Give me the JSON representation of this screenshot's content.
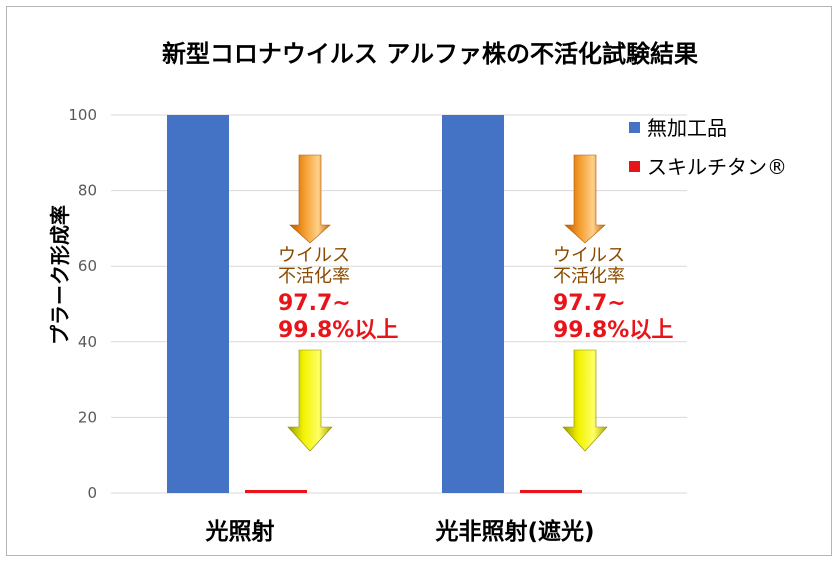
{
  "chart_data": {
    "type": "bar",
    "title": "新型コロナウイルス アルファ株の不活化試験結果",
    "xlabel": "",
    "ylabel": "プラーク形成率",
    "ylim": [
      0,
      100
    ],
    "yticks": [
      0,
      20,
      40,
      60,
      80,
      100
    ],
    "grid": true,
    "legend_position": "top-right",
    "categories": [
      "光照射",
      "光非照射(遮光)"
    ],
    "series": [
      {
        "name": "無加工品",
        "values": [
          100,
          100
        ],
        "color": "#4472c4"
      },
      {
        "name": "スキルチタン®",
        "values": [
          0.8,
          0.8
        ],
        "color": "#e8141a"
      }
    ],
    "annotations": [
      {
        "category": "光照射",
        "label_line1": "ウイルス",
        "label_line2": "不活化率",
        "value_line1": "97.7~",
        "value_line2": "99.8%以上"
      },
      {
        "category": "光非照射(遮光)",
        "label_line1": "ウイルス",
        "label_line2": "不活化率",
        "value_line1": "97.7~",
        "value_line2": "99.8%以上"
      }
    ]
  }
}
